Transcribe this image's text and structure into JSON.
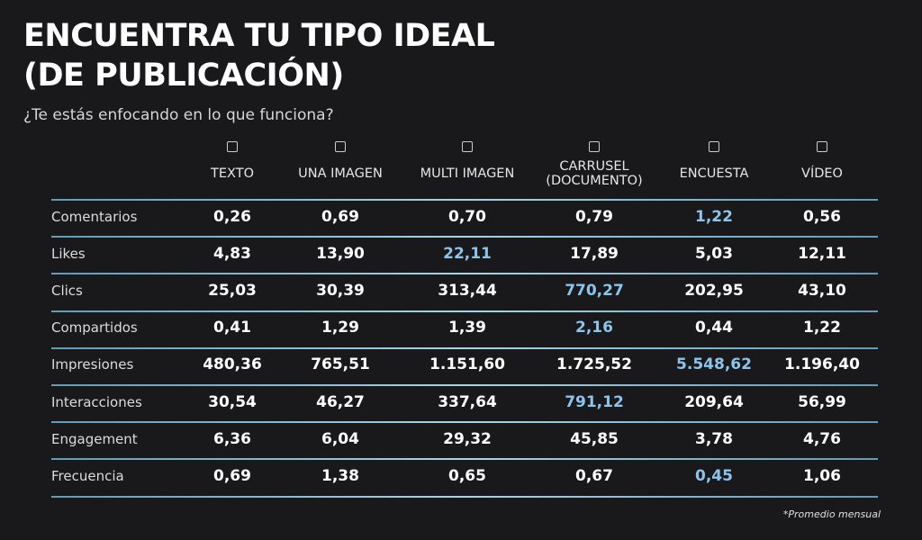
{
  "header": {
    "title": [
      "ENCUENTRA TU TIPO IDEAL",
      "(DE PUBLICACIÓN)"
    ],
    "subtitle": "¿Te estás enfocando en lo que funciona?"
  },
  "table": {
    "columns": [
      [
        "TEXTO"
      ],
      [
        "UNA IMAGEN"
      ],
      [
        "MULTI IMAGEN"
      ],
      [
        "CARRUSEL",
        "(DOCUMENTO)"
      ],
      [
        "ENCUESTA"
      ],
      [
        "VÍDEO"
      ]
    ],
    "highlight_color": "#8cc4ec",
    "rows": [
      {
        "label": "Comentarios",
        "cells": [
          "0,26",
          "0,69",
          "0,70",
          "0,79",
          "1,22",
          "0,56"
        ],
        "highlight": 4
      },
      {
        "label": "Likes",
        "cells": [
          "4,83",
          "13,90",
          "22,11",
          "17,89",
          "5,03",
          "12,11"
        ],
        "highlight": 2
      },
      {
        "label": "Clics",
        "cells": [
          "25,03",
          "30,39",
          "313,44",
          "770,27",
          "202,95",
          "43,10"
        ],
        "highlight": 3
      },
      {
        "label": "Compartidos",
        "cells": [
          "0,41",
          "1,29",
          "1,39",
          "2,16",
          "0,44",
          "1,22"
        ],
        "highlight": 3
      },
      {
        "label": "Impresiones",
        "cells": [
          "480,36",
          "765,51",
          "1.151,60",
          "1.725,52",
          "5.548,62",
          "1.196,40"
        ],
        "highlight": 4
      },
      {
        "label": "Interacciones",
        "cells": [
          "30,54",
          "46,27",
          "337,64",
          "791,12",
          "209,64",
          "56,99"
        ],
        "highlight": 3
      },
      {
        "label": "Engagement",
        "cells": [
          "6,36",
          "6,04",
          "29,32",
          "45,85",
          "3,78",
          "4,76"
        ],
        "highlight": null
      },
      {
        "label": "Frecuencia",
        "cells": [
          "0,69",
          "1,38",
          "0,65",
          "0,67",
          "0,45",
          "1,06"
        ],
        "highlight": 4
      }
    ]
  },
  "footnote": "*Promedio mensual"
}
